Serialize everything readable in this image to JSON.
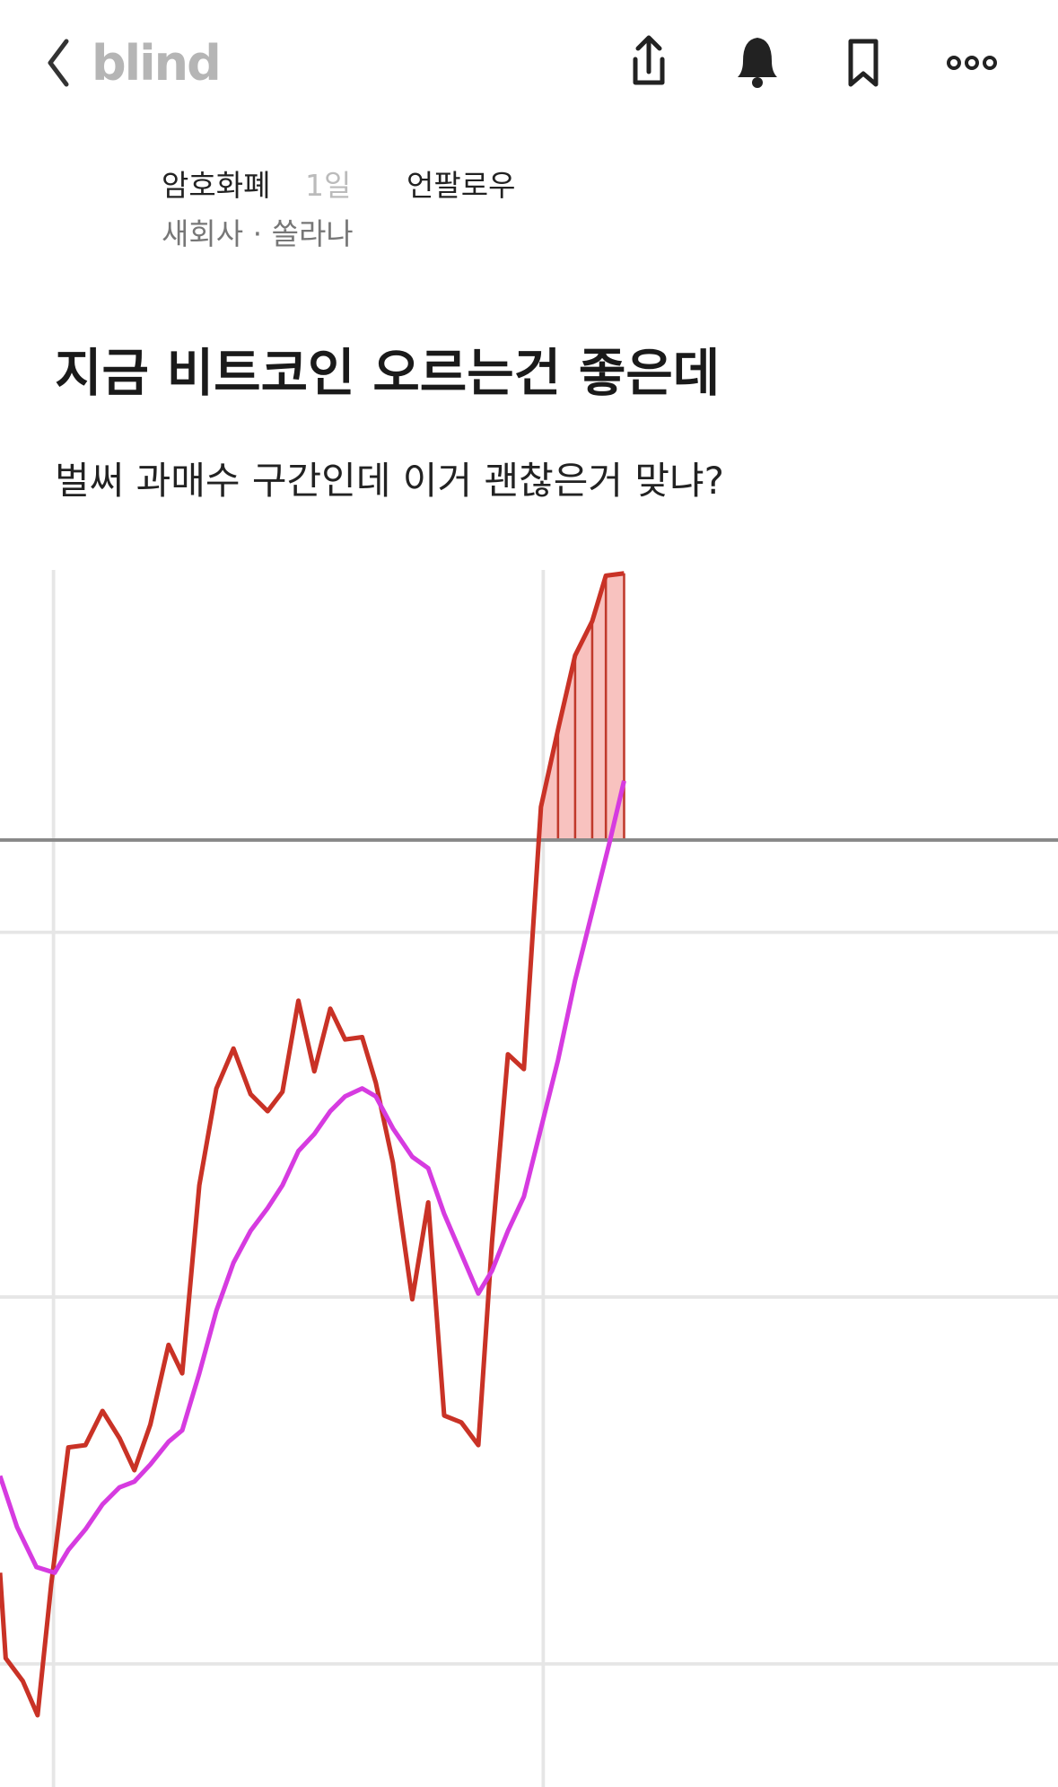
{
  "header": {
    "logo": "blind"
  },
  "post": {
    "author": "암호화폐",
    "time": "1일",
    "follow": "언팔로우",
    "company": "새회사",
    "nickname": "쏠라나",
    "title": "지금 비트코인 오르는건 좋은데",
    "body": "벌써 과매수 구간인데 이거 괜찮은거 맞냐?"
  }
}
